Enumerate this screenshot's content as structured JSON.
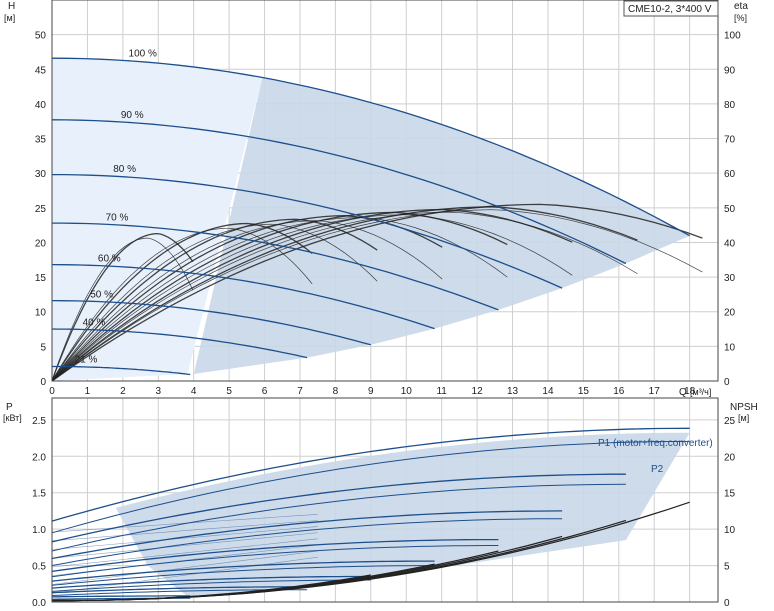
{
  "model_label": "CME10-2, 3*400 V",
  "colors": {
    "curve": "#1d4f8c",
    "envelope_fill": "#c9d7e8",
    "low_fill": "#e8f1fb",
    "grid": "#cfcfcf",
    "eff": "#222222"
  },
  "chart_data": [
    {
      "type": "line",
      "name": "head",
      "y_left_title": "H",
      "y_left_unit": "[м]",
      "y_right_title": "eta",
      "y_right_unit": "[%]",
      "x_title": "Q",
      "x_unit": "[м³/ч]",
      "xlim": [
        0,
        18.8
      ],
      "ylim": [
        0,
        55
      ],
      "y2lim": [
        0,
        110
      ],
      "x_ticks": [
        "0",
        "1",
        "2",
        "3",
        "4",
        "5",
        "6",
        "7",
        "8",
        "9",
        "10",
        "11",
        "12",
        "13",
        "14",
        "15",
        "16",
        "17",
        "18"
      ],
      "y_ticks": [
        "0",
        "5",
        "10",
        "15",
        "20",
        "25",
        "30",
        "35",
        "40",
        "45",
        "50"
      ],
      "y2_ticks": [
        "0",
        "10",
        "20",
        "30",
        "40",
        "50",
        "60",
        "70",
        "80",
        "90",
        "100"
      ],
      "grid": true,
      "speed_curves": [
        {
          "label": "100 %",
          "h0": 46.6,
          "qmax": 18.0
        },
        {
          "label": "90 %",
          "h0": 37.7,
          "qmax": 16.2
        },
        {
          "label": "80 %",
          "h0": 29.8,
          "qmax": 14.4
        },
        {
          "label": "70 %",
          "h0": 22.8,
          "qmax": 12.6
        },
        {
          "label": "60 %",
          "h0": 16.8,
          "qmax": 10.8
        },
        {
          "label": "50 %",
          "h0": 11.6,
          "qmax": 9.0
        },
        {
          "label": "40 %",
          "h0": 7.5,
          "qmax": 7.2
        },
        {
          "label": "21 %",
          "h0": 2.1,
          "qmax": 3.9
        }
      ],
      "efficiency_peak_percent": 51,
      "efficiency_peak_q": 13.2
    },
    {
      "type": "line",
      "name": "power",
      "y_left_title": "P",
      "y_left_unit": "[кВт]",
      "y_right_title": "NPSH",
      "y_right_unit": "[м]",
      "xlim": [
        0,
        18.8
      ],
      "ylim": [
        0,
        2.8
      ],
      "y2lim": [
        0,
        28
      ],
      "y_ticks": [
        "0.0",
        "0.5",
        "1.0",
        "1.5",
        "2.0",
        "2.5"
      ],
      "y2_ticks": [
        "0",
        "5",
        "10",
        "15",
        "20",
        "25"
      ],
      "grid": true,
      "series_labels": [
        "P1 (motor+freq.converter)",
        "P2"
      ],
      "p1_100": {
        "p0": 1.05,
        "pmax": 2.35,
        "qmax": 18.0
      },
      "p2_100": {
        "p0": 0.92,
        "pmax": 2.2,
        "qmax": 18.0
      },
      "npsh": [
        {
          "qmax": 18.0,
          "end": 13.5
        },
        {
          "qmax": 16.2,
          "end": 11.0
        },
        {
          "qmax": 14.4,
          "end": 8.8
        },
        {
          "qmax": 12.6,
          "end": 6.8
        },
        {
          "qmax": 10.8,
          "end": 5.0
        },
        {
          "qmax": 9.0,
          "end": 3.5
        }
      ]
    }
  ]
}
